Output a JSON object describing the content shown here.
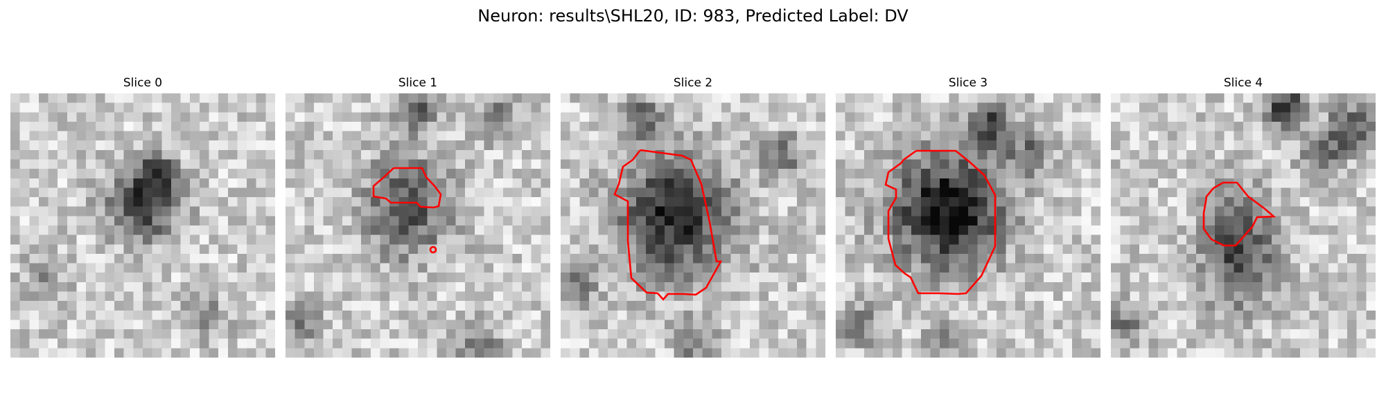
{
  "figure": {
    "title": "Neuron: results\\SHL20, ID: 983, Predicted Label: DV"
  },
  "colors": {
    "contour": "#ff0000",
    "background": "#ffffff"
  },
  "slices": [
    {
      "title": "Slice 0"
    },
    {
      "title": "Slice 1"
    },
    {
      "title": "Slice 2"
    },
    {
      "title": "Slice 3"
    },
    {
      "title": "Slice 4"
    }
  ]
}
